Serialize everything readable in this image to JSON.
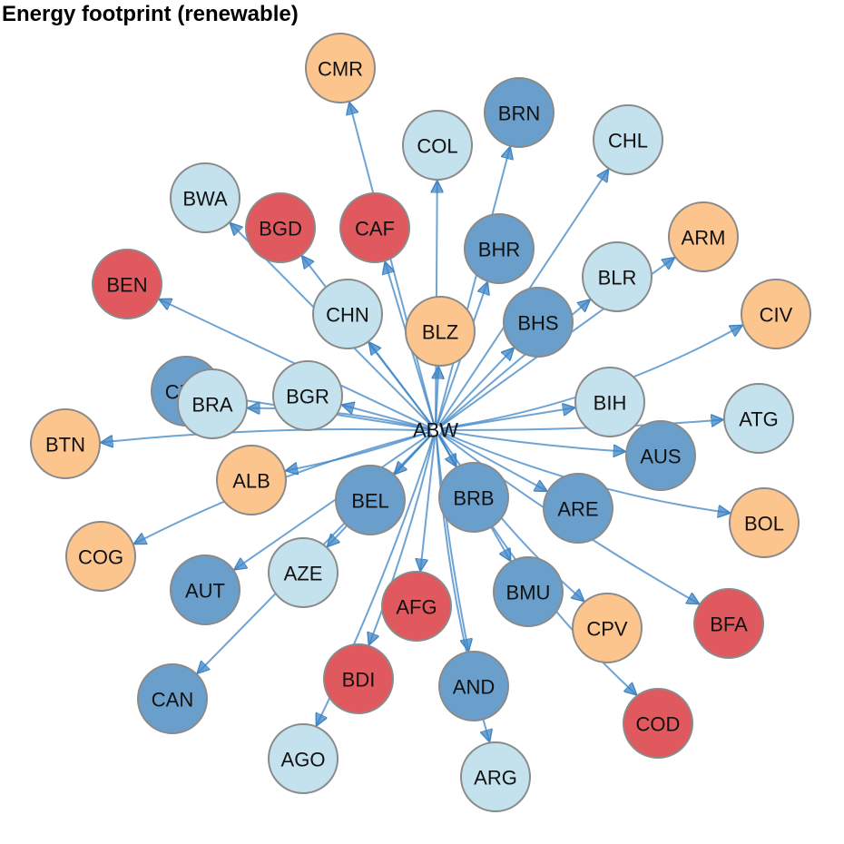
{
  "title": "Energy footprint (renewable)",
  "colors": {
    "edge": "#3d84c4",
    "node_border": "#8a8a8a",
    "levels": {
      "light_blue": "#c3e2ee",
      "blue": "#6a9fcb",
      "orange": "#fdc58e",
      "red": "#e0595e"
    }
  },
  "hub": {
    "label": "ABW"
  },
  "nodes": [
    {
      "label": "CMR",
      "level": "orange"
    },
    {
      "label": "BRN",
      "level": "blue"
    },
    {
      "label": "COL",
      "level": "light_blue"
    },
    {
      "label": "CHL",
      "level": "light_blue"
    },
    {
      "label": "BWA",
      "level": "light_blue"
    },
    {
      "label": "BGD",
      "level": "red"
    },
    {
      "label": "CAF",
      "level": "red"
    },
    {
      "label": "BHR",
      "level": "blue"
    },
    {
      "label": "ARM",
      "level": "orange"
    },
    {
      "label": "BEN",
      "level": "red"
    },
    {
      "label": "BLR",
      "level": "light_blue"
    },
    {
      "label": "CHN",
      "level": "light_blue"
    },
    {
      "label": "BLZ",
      "level": "orange"
    },
    {
      "label": "BHS",
      "level": "blue"
    },
    {
      "label": "CIV",
      "level": "orange"
    },
    {
      "label": "CHE",
      "level": "blue"
    },
    {
      "label": "BRA",
      "level": "light_blue"
    },
    {
      "label": "BGR",
      "level": "light_blue"
    },
    {
      "label": "BIH",
      "level": "light_blue"
    },
    {
      "label": "ATG",
      "level": "light_blue"
    },
    {
      "label": "BTN",
      "level": "orange"
    },
    {
      "label": "AUS",
      "level": "blue"
    },
    {
      "label": "ALB",
      "level": "orange"
    },
    {
      "label": "BEL",
      "level": "blue"
    },
    {
      "label": "BRB",
      "level": "blue"
    },
    {
      "label": "ARE",
      "level": "blue"
    },
    {
      "label": "BOL",
      "level": "orange"
    },
    {
      "label": "COG",
      "level": "orange"
    },
    {
      "label": "AZE",
      "level": "light_blue"
    },
    {
      "label": "AUT",
      "level": "blue"
    },
    {
      "label": "BMU",
      "level": "blue"
    },
    {
      "label": "AFG",
      "level": "red"
    },
    {
      "label": "CPV",
      "level": "orange"
    },
    {
      "label": "BFA",
      "level": "red"
    },
    {
      "label": "BDI",
      "level": "red"
    },
    {
      "label": "AND",
      "level": "blue"
    },
    {
      "label": "CAN",
      "level": "blue"
    },
    {
      "label": "COD",
      "level": "red"
    },
    {
      "label": "AGO",
      "level": "light_blue"
    },
    {
      "label": "ARG",
      "level": "light_blue"
    }
  ]
}
